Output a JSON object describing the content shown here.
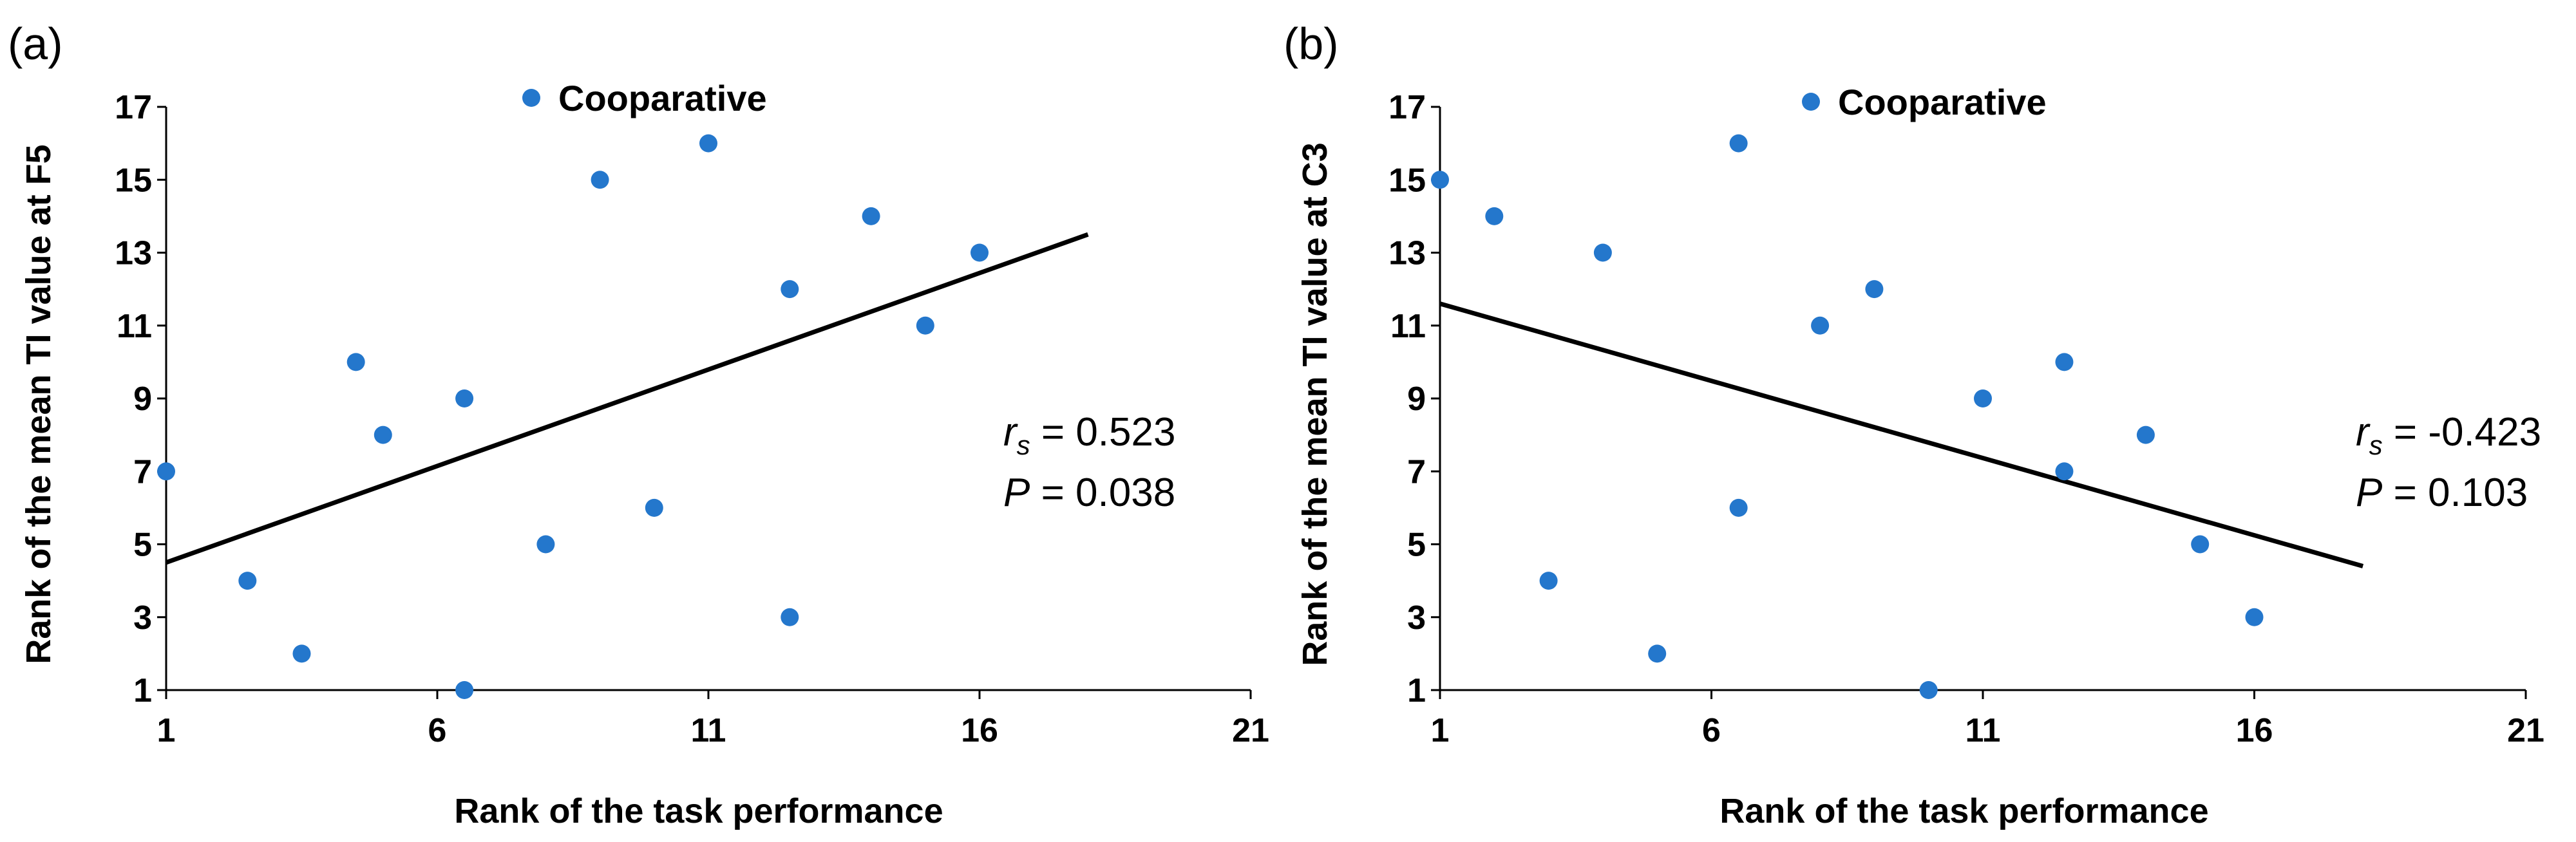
{
  "chart_data": [
    {
      "type": "scatter",
      "panel_label": "(a)",
      "xlabel": "Rank of the task performance",
      "ylabel": "Rank of the mean TI value at F5",
      "xlim": [
        1,
        21
      ],
      "ylim": [
        1,
        17
      ],
      "xticks": [
        "1",
        "6",
        "11",
        "16",
        "21"
      ],
      "yticks": [
        "1",
        "3",
        "5",
        "7",
        "9",
        "11",
        "13",
        "15",
        "17"
      ],
      "legend": "Cooparative",
      "marker_color": "#2477CC",
      "series": [
        {
          "name": "Cooparative",
          "points": [
            {
              "x": 1,
              "y": 7
            },
            {
              "x": 2.5,
              "y": 4
            },
            {
              "x": 3.5,
              "y": 2
            },
            {
              "x": 4.5,
              "y": 10
            },
            {
              "x": 5,
              "y": 8
            },
            {
              "x": 6.5,
              "y": 9
            },
            {
              "x": 6.5,
              "y": 1
            },
            {
              "x": 8,
              "y": 5
            },
            {
              "x": 9,
              "y": 15
            },
            {
              "x": 10,
              "y": 6
            },
            {
              "x": 11,
              "y": 16
            },
            {
              "x": 12.5,
              "y": 12
            },
            {
              "x": 12.5,
              "y": 3
            },
            {
              "x": 14,
              "y": 14
            },
            {
              "x": 15,
              "y": 11
            },
            {
              "x": 16,
              "y": 13
            }
          ]
        }
      ],
      "trendline": {
        "x": [
          1,
          18
        ],
        "y": [
          4.5,
          13.5
        ]
      },
      "stat": {
        "r_symbol": "r",
        "r_subscript": "s",
        "r_value": " = 0.523",
        "p_symbol": "P",
        "p_value": " = 0.038"
      }
    },
    {
      "type": "scatter",
      "panel_label": "(b)",
      "xlabel": "Rank of the task performance",
      "ylabel": "Rank of the mean TI value at C3",
      "xlim": [
        1,
        21
      ],
      "ylim": [
        1,
        17
      ],
      "xticks": [
        "1",
        "6",
        "11",
        "16",
        "21"
      ],
      "yticks": [
        "1",
        "3",
        "5",
        "7",
        "9",
        "11",
        "13",
        "15",
        "17"
      ],
      "legend": "Cooparative",
      "marker_color": "#2477CC",
      "series": [
        {
          "name": "Cooparative",
          "points": [
            {
              "x": 1,
              "y": 15
            },
            {
              "x": 2,
              "y": 14
            },
            {
              "x": 3,
              "y": 4
            },
            {
              "x": 4,
              "y": 13
            },
            {
              "x": 5,
              "y": 2
            },
            {
              "x": 6.5,
              "y": 16
            },
            {
              "x": 6.5,
              "y": 6
            },
            {
              "x": 8,
              "y": 11
            },
            {
              "x": 9,
              "y": 12
            },
            {
              "x": 10,
              "y": 1
            },
            {
              "x": 11,
              "y": 9
            },
            {
              "x": 12.5,
              "y": 10
            },
            {
              "x": 12.5,
              "y": 7
            },
            {
              "x": 14,
              "y": 8
            },
            {
              "x": 15,
              "y": 5
            },
            {
              "x": 16,
              "y": 3
            }
          ]
        }
      ],
      "trendline": {
        "x": [
          1,
          18
        ],
        "y": [
          11.6,
          4.4
        ]
      },
      "stat": {
        "r_symbol": "r",
        "r_subscript": "s",
        "r_value": " = -0.423",
        "p_symbol": "P",
        "p_value": " = 0.103"
      }
    }
  ]
}
